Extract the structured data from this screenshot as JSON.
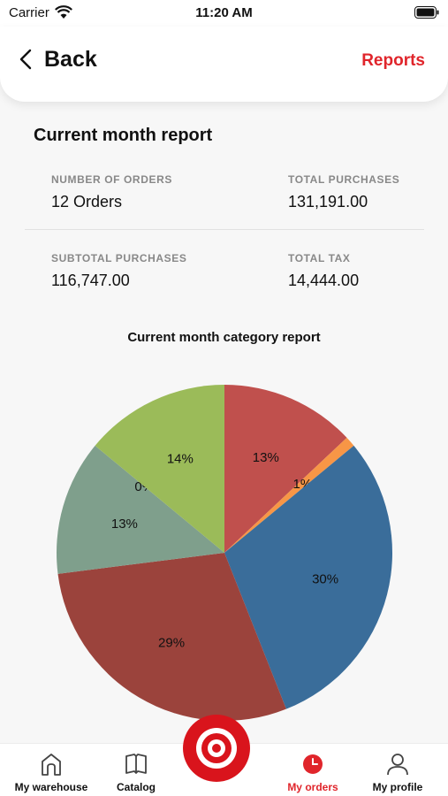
{
  "status_bar": {
    "carrier": "Carrier",
    "time": "11:20 AM"
  },
  "header": {
    "back_label": "Back",
    "reports_label": "Reports"
  },
  "report": {
    "title": "Current month report",
    "stats": [
      {
        "label": "NUMBER OF ORDERS",
        "value": "12 Orders"
      },
      {
        "label": "TOTAL PURCHASES",
        "value": "131,191.00"
      },
      {
        "label": "SUBTOTAL PURCHASES",
        "value": "116,747.00"
      },
      {
        "label": "TOTAL TAX",
        "value": "14,444.00"
      }
    ]
  },
  "chart_data": {
    "type": "pie",
    "title": "Current month category report",
    "slices": [
      {
        "label": "13%",
        "value": 13,
        "color": "#c0504d"
      },
      {
        "label": "1%",
        "value": 1,
        "color": "#f79646"
      },
      {
        "label": "30%",
        "value": 30,
        "color": "#3a6d9a"
      },
      {
        "label": "29%",
        "value": 29,
        "color": "#9b433c"
      },
      {
        "label": "13%",
        "value": 13,
        "color": "#7f9f8c"
      },
      {
        "label": "0%",
        "value": 0,
        "color": "#9bbb59"
      },
      {
        "label": "14%",
        "value": 14,
        "color": "#9bbb59"
      }
    ]
  },
  "tabbar": {
    "tabs": [
      {
        "label": "My warehouse",
        "icon": "house-icon"
      },
      {
        "label": "Catalog",
        "icon": "book-icon"
      },
      {
        "label": "My orders",
        "icon": "clock-icon",
        "active": true
      },
      {
        "label": "My profile",
        "icon": "person-icon"
      }
    ],
    "accent": "#e0252b"
  }
}
